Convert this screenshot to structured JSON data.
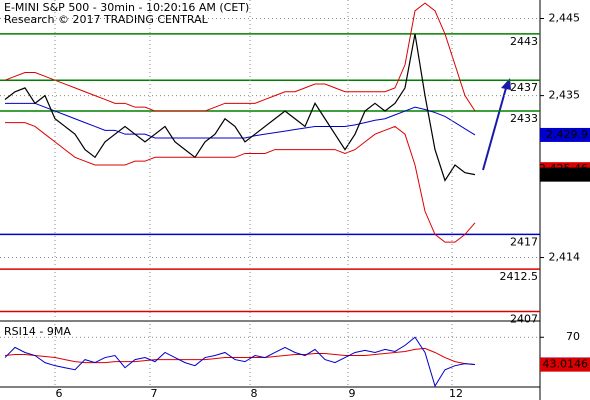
{
  "chart_data": [
    {
      "type": "line",
      "title": "E-MINI S&P 500 - 30min - 10:20:16 AM (CET)",
      "subtitle": "Research © 2017 TRADING CENTRAL",
      "xlim": [
        -0.5,
        53.5
      ],
      "ylim": [
        2405.9,
        2447.4
      ],
      "yticks": [
        {
          "value": 2445,
          "label": "2,445"
        },
        {
          "value": 2435,
          "label": "2,435"
        },
        {
          "value": 2414,
          "label": "2,414"
        }
      ],
      "levels": [
        {
          "value": 2443,
          "color": "#008000"
        },
        {
          "value": 2437,
          "color": "#008000"
        },
        {
          "value": 2433,
          "color": "#008000"
        },
        {
          "value": 2417,
          "color": "#0000cc"
        },
        {
          "value": 2412.5,
          "color": "#dd0000"
        },
        {
          "value": 2407,
          "color": "#dd0000"
        }
      ],
      "price_labels": [
        {
          "value": 2429.9,
          "label": "2,429.9",
          "color": "#0000cc"
        },
        {
          "value": 2425.46,
          "label": "2,425.46",
          "color": "#dd0000"
        },
        {
          "value": 2424.75,
          "label": "2,424.75",
          "color": "#000000"
        }
      ],
      "series": [
        {
          "color": "#dd0000",
          "values": [
            2437,
            2437.5,
            2438,
            2438,
            2437.5,
            2437,
            2436.5,
            2436,
            2435.5,
            2435,
            2434.5,
            2434,
            2434,
            2433.5,
            2433.5,
            2433,
            2433,
            2433,
            2433,
            2433,
            2433,
            2433.5,
            2434,
            2434,
            2434,
            2434,
            2434.5,
            2435,
            2435.5,
            2435.5,
            2436,
            2436.5,
            2436.5,
            2436,
            2435.5,
            2435.5,
            2435.5,
            2435.5,
            2435.5,
            2436,
            2439,
            2446,
            2447,
            2446,
            2443,
            2439,
            2435,
            2433
          ]
        },
        {
          "color": "#dd0000",
          "values": [
            2431.5,
            2431.5,
            2431.5,
            2431,
            2430,
            2429,
            2428,
            2427,
            2426.5,
            2426,
            2426,
            2426,
            2426,
            2426.5,
            2426.5,
            2427,
            2427,
            2427,
            2427,
            2427,
            2427,
            2427,
            2427,
            2427,
            2427.5,
            2427.5,
            2427.5,
            2428,
            2428,
            2428,
            2428,
            2428,
            2428,
            2428,
            2427.5,
            2428,
            2429,
            2430,
            2430.5,
            2431,
            2430,
            2426,
            2420,
            2417,
            2416,
            2416,
            2417,
            2418.5
          ]
        },
        {
          "color": "#0000cc",
          "values": [
            2434,
            2434,
            2434,
            2434,
            2433.5,
            2433,
            2432.5,
            2432,
            2431.5,
            2431,
            2430.5,
            2430.5,
            2430,
            2430,
            2430,
            2429.5,
            2429.5,
            2429.5,
            2429.5,
            2429.5,
            2429.5,
            2429.5,
            2429.5,
            2429.5,
            2429.5,
            2429.8,
            2430,
            2430.2,
            2430.4,
            2430.6,
            2430.8,
            2431,
            2431,
            2431,
            2431,
            2431.2,
            2431.5,
            2431.8,
            2432,
            2432.5,
            2433,
            2433.5,
            2433.2,
            2432.8,
            2432.3,
            2431.5,
            2430.7,
            2429.9
          ]
        },
        {
          "color": "#000000",
          "values": [
            2434.5,
            2435.5,
            2436,
            2434,
            2435,
            2432,
            2431,
            2430,
            2428,
            2427,
            2429,
            2430,
            2431,
            2430,
            2429,
            2430,
            2431,
            2429,
            2428,
            2427,
            2429,
            2430,
            2432,
            2431,
            2429,
            2430,
            2431,
            2432,
            2433,
            2432,
            2431,
            2434,
            2432,
            2430,
            2428,
            2430,
            2433,
            2434,
            2433,
            2434,
            2436,
            2443,
            2435,
            2428,
            2424,
            2426,
            2425,
            2424.75
          ]
        }
      ]
    },
    {
      "type": "line",
      "title": "RSI14 - 9MA",
      "xlim": [
        -0.5,
        53.5
      ],
      "ylim": [
        21,
        86
      ],
      "yticks": [
        70
      ],
      "xticks": [
        {
          "value": 5,
          "label": "6"
        },
        {
          "value": 14.5,
          "label": "7"
        },
        {
          "value": 24.5,
          "label": "8"
        },
        {
          "value": 34.3,
          "label": "9"
        },
        {
          "value": 44.7,
          "label": "12"
        }
      ],
      "price_labels": [
        {
          "value": 43.2062,
          "label": "43.2062",
          "color": "#0000cc"
        },
        {
          "value": 43.0146,
          "label": "43.0146",
          "color": "#dd0000"
        }
      ],
      "series": [
        {
          "color": "#dd0000",
          "values": [
            52,
            53,
            53,
            52,
            51,
            50,
            48,
            46,
            45,
            45,
            45,
            46,
            46,
            46,
            47,
            48,
            48,
            48,
            48,
            48,
            48,
            49,
            50,
            50,
            50,
            50,
            50,
            51,
            52,
            53,
            53,
            54,
            54,
            53,
            52,
            52,
            52,
            53,
            54,
            55,
            56,
            58,
            59,
            55,
            50,
            46,
            44,
            43.0146
          ]
        },
        {
          "color": "#0000cc",
          "values": [
            50,
            60,
            55,
            52,
            45,
            42,
            40,
            38,
            48,
            45,
            50,
            52,
            40,
            48,
            50,
            46,
            55,
            50,
            45,
            42,
            50,
            52,
            55,
            48,
            46,
            52,
            50,
            55,
            60,
            55,
            52,
            58,
            48,
            45,
            50,
            55,
            57,
            55,
            58,
            56,
            62,
            70,
            55,
            22,
            38,
            42,
            44,
            43.2062
          ]
        }
      ]
    }
  ]
}
